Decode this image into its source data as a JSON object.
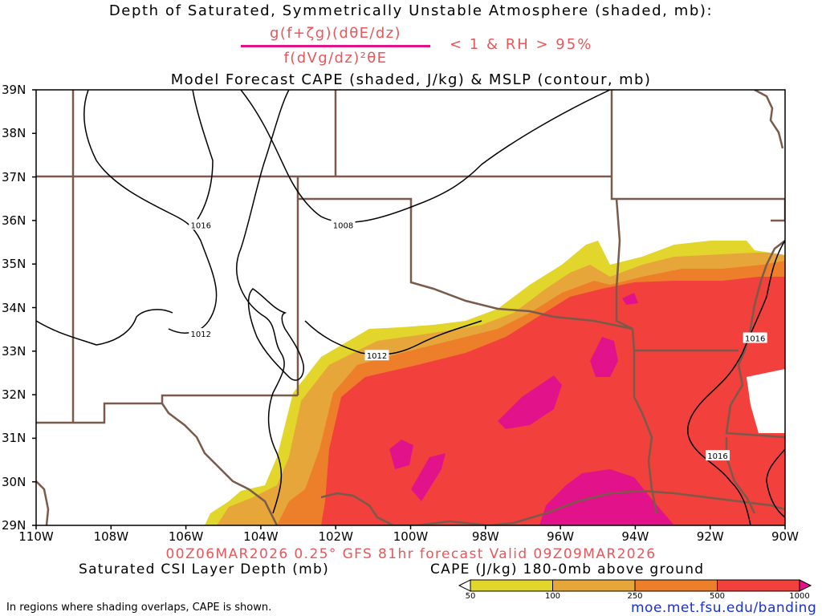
{
  "title": {
    "line1": "Depth of Saturated, Symmetrically Unstable Atmosphere (shaded, mb):",
    "numerator": "g(f+ζg)(dθE/dz)",
    "denominator": "f(dVg/dz)²θE",
    "condition": "< 1 & RH > 95%",
    "line3": "Model Forecast CAPE (shaded, J/kg) & MSLP (contour, mb)"
  },
  "latitudes": [
    "39N",
    "38N",
    "37N",
    "36N",
    "35N",
    "34N",
    "33N",
    "32N",
    "31N",
    "30N",
    "29N"
  ],
  "longitudes": [
    "110W",
    "108W",
    "106W",
    "104W",
    "102W",
    "100W",
    "98W",
    "96W",
    "94W",
    "92W",
    "90W"
  ],
  "contour_labels": [
    {
      "text": "1016",
      "lon": -105.6,
      "lat": 35.9
    },
    {
      "text": "1008",
      "lon": -101.8,
      "lat": 35.9
    },
    {
      "text": "1012",
      "lon": -105.6,
      "lat": 33.4
    },
    {
      "text": "1012",
      "lon": -100.9,
      "lat": 32.9
    },
    {
      "text": "1016",
      "lon": -90.8,
      "lat": 33.3
    },
    {
      "text": "1016",
      "lon": -91.8,
      "lat": 30.6
    }
  ],
  "valid_line": "00Z06MAR2026 0.25° GFS 81hr forecast Valid 09Z09MAR2026",
  "legend": {
    "left_title": "Saturated CSI Layer Depth (mb)",
    "right_title": "CAPE (J/kg) 180-0mb above ground",
    "cape_ticks": [
      "50",
      "100",
      "250",
      "500",
      "1000"
    ],
    "cape_colors": [
      "#ffffff",
      "#e2d52c",
      "#e7a63a",
      "#ee7f2a",
      "#f2403d",
      "#e2138a"
    ]
  },
  "footer": {
    "note": "In regions where shading overlaps, CAPE is shown.",
    "url": "moe.met.fsu.edu/banding"
  },
  "colors": {
    "border": "#7a5a4a",
    "contour": "#000000",
    "accent_text": "#e8575b",
    "url": "#1a2fd6"
  }
}
